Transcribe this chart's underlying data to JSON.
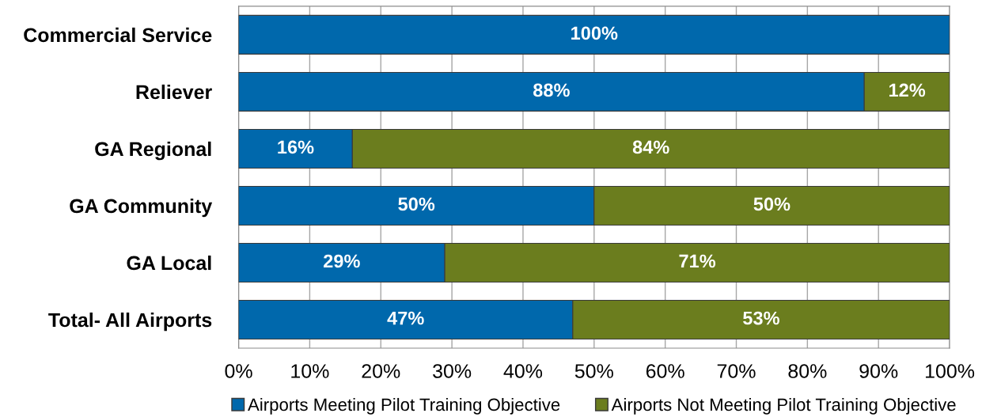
{
  "chart_data": {
    "type": "bar",
    "orientation": "horizontal",
    "stacked": true,
    "categories": [
      "Commercial Service",
      "Reliever",
      "GA Regional",
      "GA Community",
      "GA Local",
      "Total- All Airports"
    ],
    "series": [
      {
        "name": "Airports Meeting Pilot Training Objective",
        "color": "#0068ac",
        "values": [
          100,
          88,
          16,
          50,
          29,
          47
        ],
        "value_labels": [
          "100%",
          "88%",
          "16%",
          "50%",
          "29%",
          "47%"
        ]
      },
      {
        "name": "Airports Not Meeting Pilot Training Objective",
        "color": "#6b7d1e",
        "values": [
          0,
          12,
          84,
          50,
          71,
          53
        ],
        "value_labels": [
          null,
          "12%",
          "84%",
          "50%",
          "71%",
          "53%"
        ]
      }
    ],
    "xlim": [
      0,
      100
    ],
    "xticks": [
      {
        "value": 0,
        "label": "0%"
      },
      {
        "value": 10,
        "label": "10%"
      },
      {
        "value": 20,
        "label": "20%"
      },
      {
        "value": 30,
        "label": "30%"
      },
      {
        "value": 40,
        "label": "40%"
      },
      {
        "value": 50,
        "label": "50%"
      },
      {
        "value": 60,
        "label": "60%"
      },
      {
        "value": 70,
        "label": "70%"
      },
      {
        "value": 80,
        "label": "80%"
      },
      {
        "value": 90,
        "label": "90%"
      },
      {
        "value": 100,
        "label": "100%"
      }
    ],
    "grid": "x",
    "legend": "bottom"
  }
}
